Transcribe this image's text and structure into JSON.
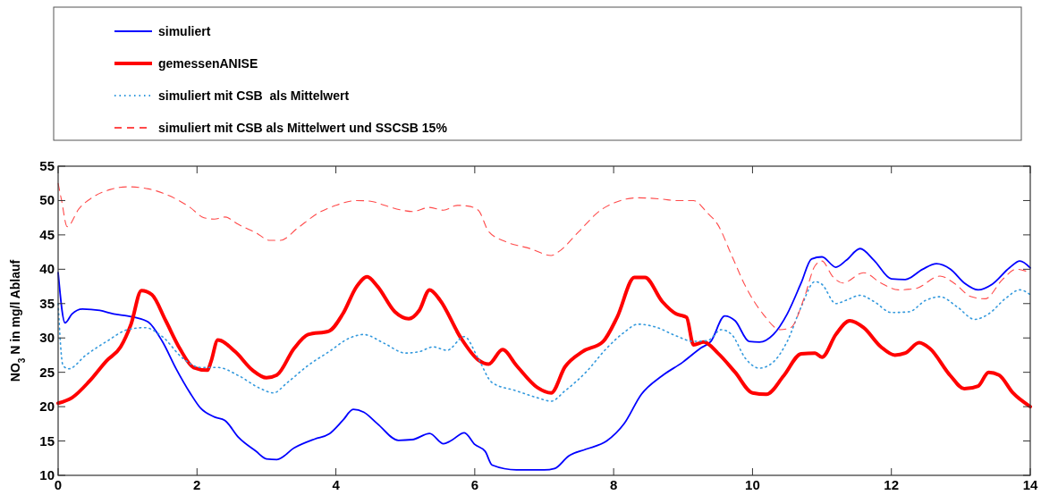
{
  "chart_data": {
    "type": "line",
    "ylabel": "NO$_{3}$ N in mg/l Ablauf",
    "xlim": [
      0,
      14
    ],
    "ylim": [
      10,
      55
    ],
    "xticks": [
      0,
      2,
      4,
      6,
      8,
      10,
      12,
      14
    ],
    "yticks": [
      10,
      15,
      20,
      25,
      30,
      35,
      40,
      45,
      50,
      55
    ],
    "grid": false,
    "legend": "top",
    "series": [
      {
        "name": "simuliert",
        "color": "#0000ff",
        "line_style": "solid",
        "x": [
          0,
          0.1,
          0.2,
          0.35,
          0.6,
          0.8,
          1,
          1.1,
          1.3,
          1.5,
          1.7,
          1.9,
          2.05,
          2.25,
          2.4,
          2.6,
          2.85,
          3,
          3.15,
          3.4,
          3.7,
          3.9,
          4.1,
          4.25,
          4.4,
          4.6,
          4.9,
          5.1,
          5.35,
          5.55,
          5.65,
          5.85,
          6,
          6.15,
          6.25,
          6.6,
          7,
          7.15,
          7.35,
          7.6,
          7.9,
          8.15,
          8.4,
          8.7,
          9,
          9.25,
          9.4,
          9.6,
          9.75,
          9.95,
          10.1,
          10.3,
          10.5,
          10.7,
          10.85,
          11,
          11.2,
          11.35,
          11.55,
          11.75,
          12,
          12.2,
          12.45,
          12.65,
          12.85,
          13.05,
          13.25,
          13.45,
          13.7,
          13.85,
          14
        ],
        "values": [
          39.5,
          32.2,
          33.5,
          34.2,
          34,
          33.5,
          33.2,
          33,
          32.3,
          29.5,
          25.5,
          22,
          19.8,
          18.5,
          18,
          15.5,
          13.5,
          12.4,
          12.3,
          14,
          15.3,
          16,
          18,
          19.6,
          19.2,
          17.5,
          15.1,
          15.2,
          16.1,
          14.6,
          15,
          16.2,
          14.5,
          13.5,
          11.5,
          10.8,
          10.8,
          11,
          12.8,
          13.8,
          15,
          17.5,
          21.8,
          24.5,
          26.5,
          28.5,
          29.5,
          33.2,
          32.5,
          29.5,
          29.4,
          30.5,
          33.5,
          38,
          41.5,
          41.8,
          40.3,
          41.3,
          43,
          41.3,
          38.6,
          38.5,
          40,
          40.8,
          40,
          38,
          37,
          37.8,
          40.2,
          41.2,
          40.2
        ]
      },
      {
        "name": "gemessenANISE",
        "color": "#ff0000",
        "line_style": "solid",
        "x": [
          0,
          0.2,
          0.45,
          0.7,
          0.9,
          1.05,
          1.2,
          1.35,
          1.55,
          1.75,
          1.95,
          2.15,
          2.2,
          2.3,
          2.55,
          2.8,
          3,
          3.15,
          3.4,
          3.6,
          3.9,
          4.1,
          4.3,
          4.45,
          4.6,
          4.85,
          5.05,
          5.2,
          5.35,
          5.5,
          5.8,
          6.05,
          6.2,
          6.4,
          6.6,
          6.9,
          7.1,
          7.3,
          7.55,
          7.85,
          8.05,
          8.3,
          8.45,
          8.7,
          8.9,
          9.05,
          9.15,
          9.3,
          9.5,
          9.75,
          10,
          10.2,
          10.45,
          10.7,
          10.9,
          11,
          11.2,
          11.4,
          11.6,
          11.85,
          12.05,
          12.2,
          12.4,
          12.55,
          12.85,
          13.05,
          13.25,
          13.4,
          13.55,
          13.75,
          14
        ],
        "values": [
          20.5,
          21.3,
          23.7,
          26.7,
          28.7,
          32,
          36.9,
          36.3,
          32.5,
          28.5,
          25.7,
          25.3,
          26.5,
          29.7,
          28,
          25.3,
          24.2,
          24.6,
          28.5,
          30.5,
          31,
          33.5,
          37.5,
          38.9,
          37.5,
          33.8,
          32.8,
          34,
          37,
          35.5,
          30,
          26.8,
          26.2,
          28.3,
          26,
          22.8,
          22,
          25.8,
          28,
          29.5,
          33,
          38.8,
          38.8,
          35.3,
          33.5,
          33,
          29,
          29.4,
          27.8,
          25,
          22,
          21.8,
          24.5,
          27.7,
          27.8,
          27.2,
          30.5,
          32.5,
          31.5,
          28.7,
          27.5,
          27.8,
          29.3,
          28.5,
          24.5,
          22.6,
          23,
          25,
          24.6,
          22,
          20
        ]
      },
      {
        "name": "simuliert mit CSB  als Mittelwert",
        "color": "#3399dd",
        "line_style": "dotted",
        "x": [
          0,
          0.07,
          0.15,
          0.4,
          0.7,
          1,
          1.25,
          1.5,
          1.8,
          2.05,
          2.3,
          2.6,
          2.9,
          3.1,
          3.3,
          3.6,
          3.9,
          4.2,
          4.4,
          4.7,
          5,
          5.2,
          5.4,
          5.6,
          5.85,
          6.05,
          6.25,
          6.6,
          6.9,
          7.1,
          7.3,
          7.6,
          7.9,
          8.15,
          8.35,
          8.6,
          8.9,
          9.15,
          9.35,
          9.55,
          9.7,
          9.9,
          10.1,
          10.3,
          10.5,
          10.7,
          10.9,
          11,
          11.2,
          11.35,
          11.55,
          11.75,
          12,
          12.25,
          12.5,
          12.7,
          12.95,
          13.2,
          13.4,
          13.65,
          13.85,
          14
        ],
        "values": [
          35,
          26,
          25.5,
          27.5,
          29.5,
          31.2,
          31.5,
          30.2,
          27,
          25.7,
          25.7,
          24.5,
          22.7,
          22,
          23.5,
          26,
          28,
          30,
          30.5,
          29.2,
          27.8,
          28,
          28.7,
          28.2,
          30.2,
          27,
          23.5,
          22.3,
          21.3,
          20.8,
          22.3,
          25,
          28.5,
          30.8,
          32,
          31.6,
          30.3,
          29.5,
          29.6,
          31.2,
          30.5,
          27,
          25.6,
          26.5,
          29.5,
          34.5,
          38.2,
          37.8,
          35,
          35.5,
          36.2,
          35.3,
          33.7,
          33.8,
          35.5,
          36,
          34.5,
          32.7,
          33.5,
          35.8,
          37,
          36.3
        ]
      },
      {
        "name": "simuliert mit CSB als Mittelwert und SSCSB 15%",
        "color": "#ff4a4a",
        "line_style": "dashed",
        "x": [
          0,
          0.05,
          0.13,
          0.3,
          0.5,
          0.75,
          1,
          1.3,
          1.6,
          1.9,
          2.1,
          2.25,
          2.4,
          2.6,
          2.85,
          3.05,
          3.2,
          3.45,
          3.75,
          4,
          4.3,
          4.5,
          4.7,
          4.95,
          5.1,
          5.35,
          5.55,
          5.75,
          5.9,
          6.05,
          6.2,
          6.45,
          6.8,
          7.1,
          7.2,
          7.5,
          7.8,
          8.1,
          8.35,
          8.7,
          8.9,
          9.15,
          9.35,
          9.5,
          9.7,
          9.9,
          10.15,
          10.4,
          10.55,
          10.75,
          10.9,
          11,
          11.15,
          11.3,
          11.6,
          11.85,
          12.1,
          12.35,
          12.7,
          12.9,
          13.15,
          13.35,
          13.6,
          13.8,
          14
        ],
        "values": [
          52.5,
          50,
          46.2,
          48.8,
          50.5,
          51.6,
          52,
          51.7,
          50.7,
          49,
          47.5,
          47.3,
          47.6,
          46.5,
          45.3,
          44.2,
          44.2,
          46,
          48.2,
          49.3,
          50,
          49.9,
          49.3,
          48.6,
          48.4,
          49,
          48.6,
          49.3,
          49.2,
          48.6,
          45.5,
          44,
          43,
          42,
          42.5,
          45.5,
          48.5,
          50,
          50.4,
          50.2,
          50,
          50,
          48.2,
          46.5,
          42,
          37.5,
          33.5,
          31.2,
          31.5,
          36,
          40.5,
          41.2,
          39,
          38,
          39.5,
          38,
          37,
          37.2,
          39,
          38,
          36,
          35.7,
          38.5,
          40,
          39.5
        ]
      }
    ]
  }
}
